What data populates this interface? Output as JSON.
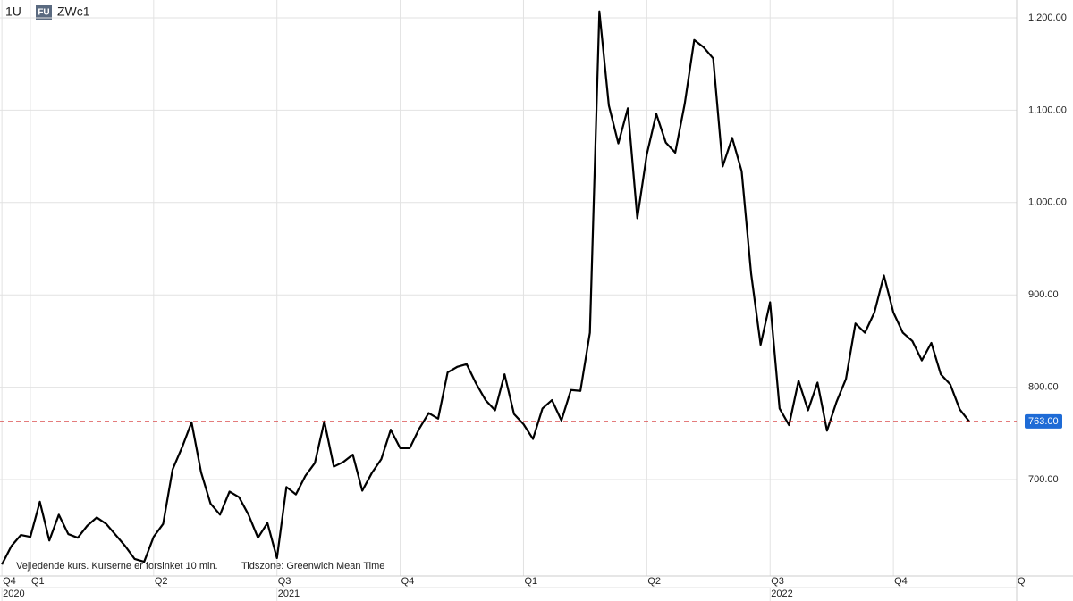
{
  "header": {
    "interval": "1U",
    "badge": "FU",
    "symbol": "ZWc1"
  },
  "footnotes": [
    "Vejledende kurs. Kurserne er forsinket 10 min.",
    "Tidszone: Greenwich Mean Time"
  ],
  "chart_data": {
    "type": "line",
    "x": [
      -3,
      -2,
      -1,
      0,
      1,
      2,
      3,
      4,
      5,
      6,
      7,
      8,
      9,
      10,
      11,
      12,
      13,
      14,
      15,
      16,
      17,
      18,
      19,
      20,
      21,
      22,
      23,
      24,
      25,
      26,
      27,
      28,
      29,
      30,
      31,
      32,
      33,
      34,
      35,
      36,
      37,
      38,
      39,
      40,
      41,
      42,
      43,
      44,
      45,
      46,
      47,
      48,
      49,
      50,
      51,
      52,
      53,
      54,
      55,
      56,
      57,
      58,
      59,
      60,
      61,
      62,
      63,
      64,
      65,
      66,
      67,
      68,
      69,
      70,
      71,
      72,
      73,
      74,
      75,
      76,
      77,
      78,
      79,
      80,
      81,
      82,
      83,
      84,
      85,
      86,
      87,
      88,
      89,
      90,
      91,
      92,
      93,
      94,
      95,
      96,
      97,
      98,
      99
    ],
    "series": [
      {
        "name": "ZWc1",
        "color": "#000000",
        "values": [
          608,
          628,
          640,
          638,
          676,
          634,
          662,
          641,
          637,
          650,
          659,
          652,
          640,
          628,
          614,
          611,
          638,
          652,
          711,
          735,
          762,
          708,
          674,
          662,
          687,
          681,
          662,
          637,
          653,
          615,
          692,
          684,
          704,
          718,
          763,
          714,
          719,
          727,
          688,
          707,
          722,
          754,
          734,
          734,
          755,
          772,
          766,
          816,
          822,
          825,
          804,
          786,
          775,
          814,
          771,
          760,
          744,
          777,
          786,
          764,
          797,
          796,
          859,
          1207,
          1105,
          1064,
          1102,
          983,
          1052,
          1096,
          1065,
          1054,
          1107,
          1176,
          1168,
          1156,
          1039,
          1070,
          1034,
          923,
          846,
          892,
          777,
          759,
          807,
          775,
          805,
          753,
          784,
          809,
          869,
          859,
          881,
          921,
          881,
          859,
          850,
          829,
          848,
          814,
          803,
          776,
          763
        ]
      }
    ],
    "xlim": [
      -3.2,
      104
    ],
    "xticks": [
      {
        "value": -3,
        "label": "Q4"
      },
      {
        "value": 0,
        "label": "Q1"
      },
      {
        "value": 13,
        "label": "Q2"
      },
      {
        "value": 26,
        "label": "Q3"
      },
      {
        "value": 39,
        "label": "Q4"
      },
      {
        "value": 52,
        "label": "Q1"
      },
      {
        "value": 65,
        "label": "Q2"
      },
      {
        "value": 78,
        "label": "Q3"
      },
      {
        "value": 91,
        "label": "Q4"
      },
      {
        "value": 104,
        "label": "Q"
      }
    ],
    "year_ticks": [
      {
        "value": -3,
        "label": "2020"
      },
      {
        "value": 26,
        "label": "2021"
      },
      {
        "value": 78,
        "label": "2022"
      }
    ],
    "ylim": [
      595.6,
      1219.3
    ],
    "yticks": [
      {
        "value": 700,
        "label": "700.00"
      },
      {
        "value": 800,
        "label": "800.00"
      },
      {
        "value": 900,
        "label": "900.00"
      },
      {
        "value": 1000,
        "label": "1,000.00"
      },
      {
        "value": 1100,
        "label": "1,100.00"
      },
      {
        "value": 1200,
        "label": "1,200.00"
      }
    ],
    "grid": true,
    "price_line": {
      "value": 763,
      "label": "763.00",
      "color": "#d32f2f",
      "label_color": "#1e6bd6"
    }
  }
}
